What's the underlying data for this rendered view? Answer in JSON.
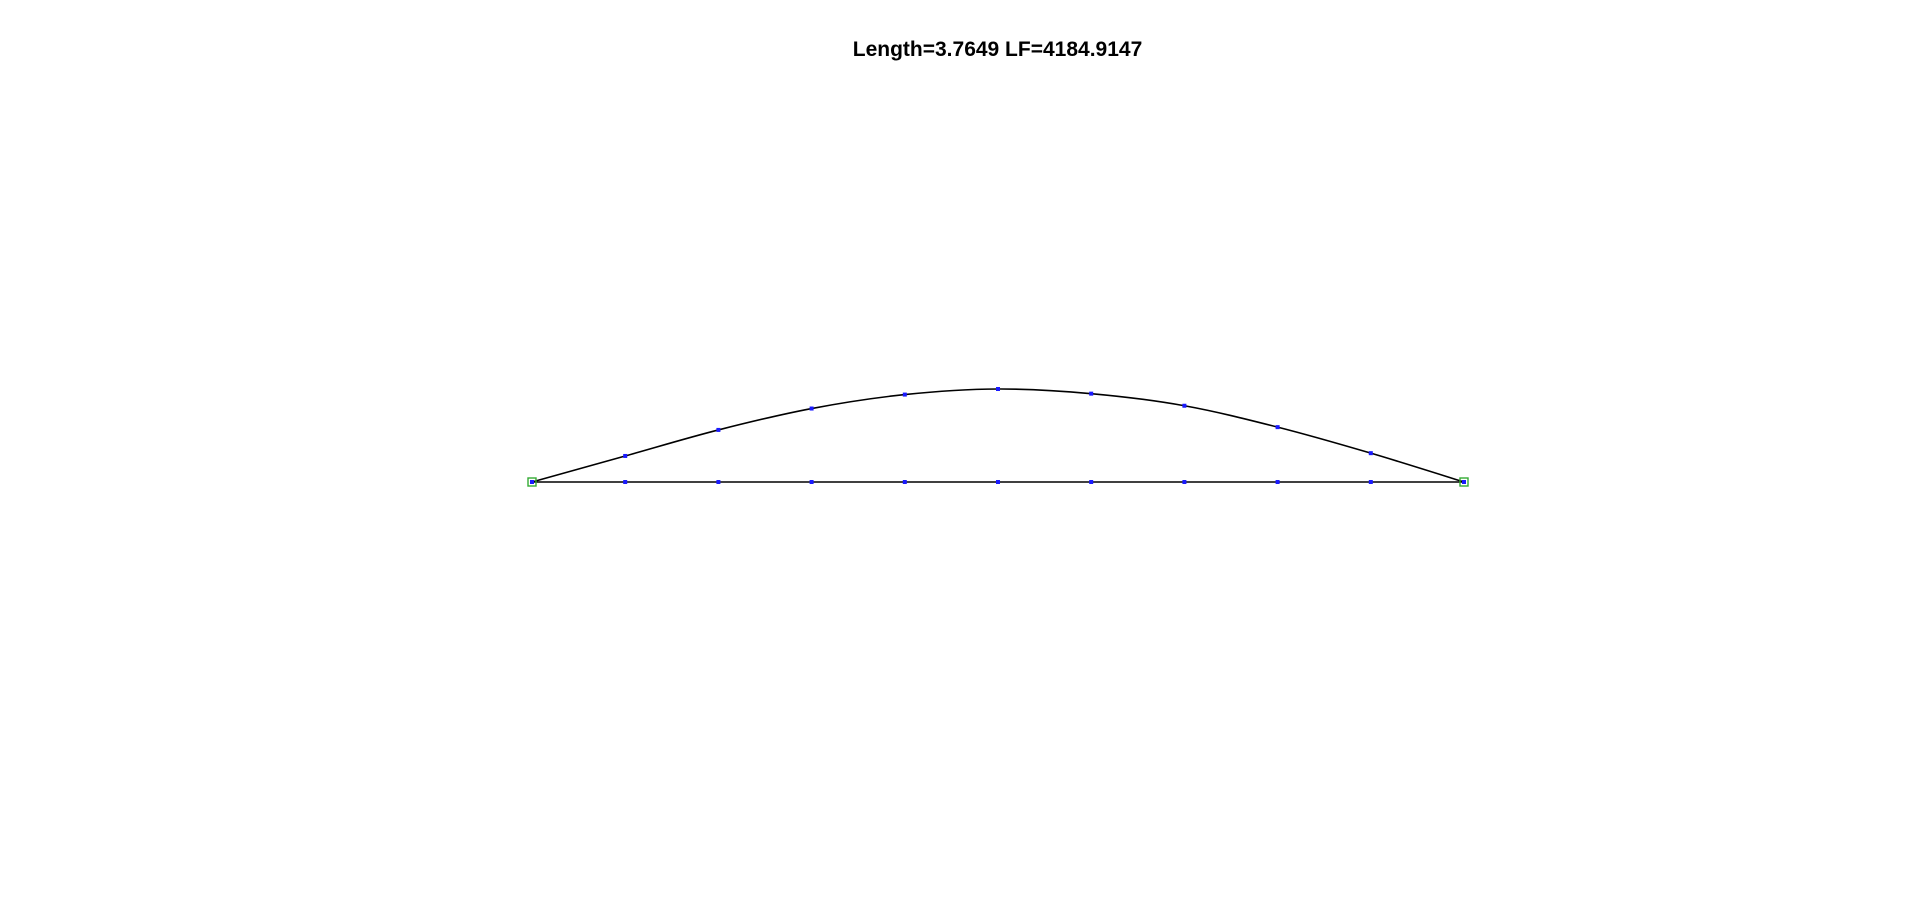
{
  "figure": {
    "title": "Length=3.7649 LF=4184.9147"
  },
  "colors": {
    "curve": "#000000",
    "node": "#1a1aff",
    "endpoint": "#33aa33"
  },
  "chart_data": {
    "type": "line",
    "title": "Length=3.7649 LF=4184.9147",
    "grid": false,
    "series": [
      {
        "role": "upper-curve",
        "x": [
          0,
          1,
          2,
          3,
          4,
          5,
          6,
          7,
          8,
          9,
          10
        ],
        "y": [
          0,
          0.28,
          0.56,
          0.79,
          0.94,
          1.0,
          0.95,
          0.82,
          0.59,
          0.31,
          0
        ]
      },
      {
        "role": "baseline",
        "x": [
          0,
          1,
          2,
          3,
          4,
          5,
          6,
          7,
          8,
          9,
          10
        ],
        "y": [
          0,
          0,
          0,
          0,
          0,
          0,
          0,
          0,
          0,
          0,
          0
        ]
      }
    ],
    "endpoints": [
      {
        "x": 0,
        "y": 0
      },
      {
        "x": 10,
        "y": 0
      }
    ]
  }
}
